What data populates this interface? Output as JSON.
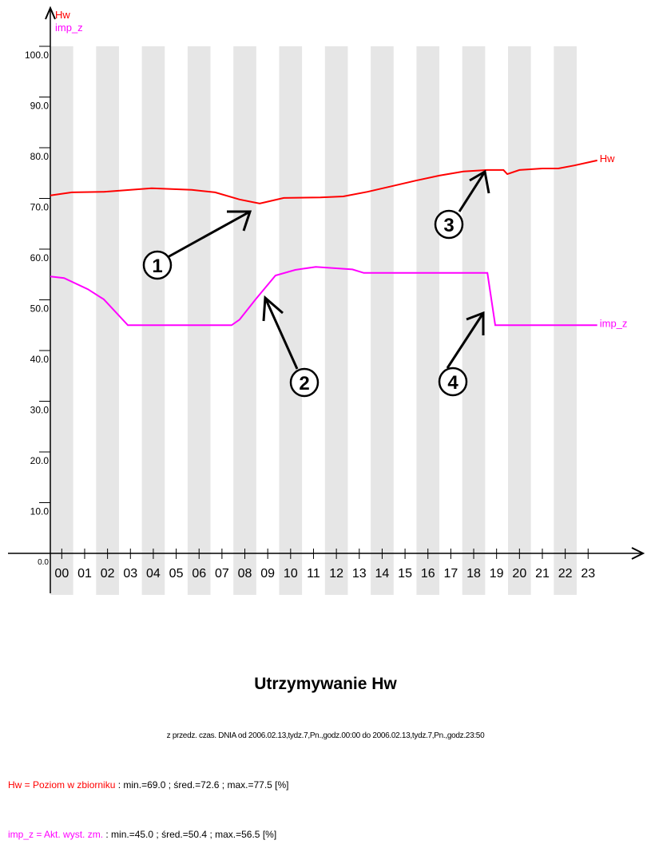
{
  "chart_data": {
    "type": "line",
    "title": "Utrzymywanie Hw",
    "subtitle": "z przedz. czas. DNIA od 2006.02.13,tydz.7,Pn.,godz.00:00 do 2006.02.13,tydz.7,Pn.,godz.23:50",
    "ylim": [
      0,
      100
    ],
    "xlim_hours": [
      0,
      24
    ],
    "y_ticks": [
      "0.0",
      "10.0",
      "20.0",
      "30.0",
      "40.0",
      "50.0",
      "60.0",
      "70.0",
      "80.0",
      "90.0",
      "100.0"
    ],
    "x_ticks": [
      "00",
      "01",
      "02",
      "03",
      "04",
      "05",
      "06",
      "07",
      "08",
      "09",
      "10",
      "11",
      "12",
      "13",
      "14",
      "15",
      "16",
      "17",
      "18",
      "19",
      "20",
      "21",
      "22",
      "23"
    ],
    "axis_legend": [
      "Hw",
      "imp_z"
    ],
    "series": [
      {
        "name": "Hw",
        "color": "#ff0000",
        "label": "Hw",
        "points": [
          [
            0,
            70.6
          ],
          [
            0.94,
            71.2
          ],
          [
            2.34,
            71.3
          ],
          [
            4.43,
            72.0
          ],
          [
            6.18,
            71.7
          ],
          [
            7.2,
            71.2
          ],
          [
            8.27,
            69.8
          ],
          [
            9.15,
            69.0
          ],
          [
            10.2,
            70.1
          ],
          [
            11.8,
            70.2
          ],
          [
            12.8,
            70.4
          ],
          [
            13.86,
            71.3
          ],
          [
            14.9,
            72.4
          ],
          [
            15.95,
            73.5
          ],
          [
            17.0,
            74.5
          ],
          [
            18.05,
            75.3
          ],
          [
            19.1,
            75.6
          ],
          [
            19.8,
            75.6
          ],
          [
            19.97,
            74.8
          ],
          [
            20.5,
            75.6
          ],
          [
            21.5,
            75.9
          ],
          [
            22.2,
            75.9
          ],
          [
            22.9,
            76.5
          ],
          [
            23.9,
            77.5
          ]
        ]
      },
      {
        "name": "imp_z",
        "color": "#ff00ff",
        "label": "imp_z",
        "points": [
          [
            0,
            54.6
          ],
          [
            0.6,
            54.3
          ],
          [
            1.64,
            52.1
          ],
          [
            2.34,
            50.1
          ],
          [
            3.39,
            45.0
          ],
          [
            7.92,
            45.0
          ],
          [
            8.27,
            46.1
          ],
          [
            8.97,
            50.1
          ],
          [
            9.84,
            54.8
          ],
          [
            10.7,
            55.9
          ],
          [
            11.6,
            56.5
          ],
          [
            13.2,
            56.0
          ],
          [
            13.7,
            55.3
          ],
          [
            19.1,
            55.3
          ],
          [
            19.44,
            45.0
          ],
          [
            23.9,
            45.0
          ]
        ]
      }
    ],
    "annotations": [
      "1",
      "2",
      "3",
      "4"
    ],
    "legend": [
      {
        "name": "Hw = Poziom w zbiorniku",
        "stats": " : min.=69.0 ; śred.=72.6 ; max.=77.5 [%]",
        "color": "#ff0000"
      },
      {
        "name": "imp_z = Akt. wyst. zm.",
        "stats": " : min.=45.0 ; śred.=50.4 ; max.=56.5 [%]",
        "color": "#ff00ff"
      }
    ]
  }
}
